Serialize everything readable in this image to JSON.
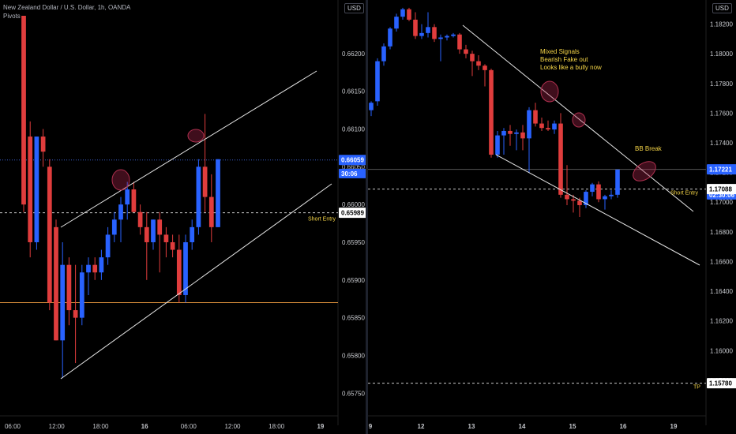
{
  "charts": [
    {
      "id": "left",
      "header": {
        "symbol_line": "New Zealand Dollar / U.S. Dollar, 1h, OANDA",
        "indicator": "Pivots"
      },
      "currency": "USD",
      "colors": {
        "up": "#2962ff",
        "down": "#e03d3d",
        "bg": "#000000",
        "axis_text": "#c8cacf"
      },
      "y_ticks": [
        "0.66200",
        "0.66150",
        "0.66100",
        "0.66050",
        "0.66000",
        "0.65950",
        "0.65900",
        "0.65850",
        "0.65800",
        "0.65750"
      ],
      "x_ticks": [
        "06:00",
        "12:00",
        "18:00",
        "16",
        "06:00",
        "12:00",
        "18:00",
        "19"
      ],
      "price_tags": [
        {
          "text": "0.66059",
          "value": 0.66059,
          "style": "blue"
        },
        {
          "text": "30:06",
          "value": 0.66041,
          "style": "blue-small"
        },
        {
          "text": "0.65989",
          "value": 0.65989,
          "style": "white"
        }
      ],
      "level_labels": [
        {
          "text": "Short Entry",
          "value": 0.65989,
          "color": "#f5d547"
        }
      ],
      "chart_data": {
        "type": "candlestick",
        "y_range": [
          0.6572,
          0.6625
        ],
        "candles": [
          {
            "o": 0.6625,
            "h": 0.6625,
            "l": 0.6599,
            "c": 0.66
          },
          {
            "o": 0.6609,
            "h": 0.6611,
            "l": 0.6593,
            "c": 0.6595
          },
          {
            "o": 0.6595,
            "h": 0.6609,
            "l": 0.6594,
            "c": 0.6609
          },
          {
            "o": 0.6609,
            "h": 0.661,
            "l": 0.6605,
            "c": 0.6607
          },
          {
            "o": 0.6605,
            "h": 0.6606,
            "l": 0.6586,
            "c": 0.6587
          },
          {
            "o": 0.6597,
            "h": 0.6598,
            "l": 0.6582,
            "c": 0.6582
          },
          {
            "o": 0.6582,
            "h": 0.6595,
            "l": 0.6577,
            "c": 0.6592
          },
          {
            "o": 0.6592,
            "h": 0.6593,
            "l": 0.6584,
            "c": 0.6586
          },
          {
            "o": 0.6586,
            "h": 0.6592,
            "l": 0.6579,
            "c": 0.6585
          },
          {
            "o": 0.6585,
            "h": 0.6592,
            "l": 0.6584,
            "c": 0.6591
          },
          {
            "o": 0.6591,
            "h": 0.6593,
            "l": 0.6588,
            "c": 0.6592
          },
          {
            "o": 0.6592,
            "h": 0.6593,
            "l": 0.659,
            "c": 0.6591
          },
          {
            "o": 0.6591,
            "h": 0.6594,
            "l": 0.659,
            "c": 0.6593
          },
          {
            "o": 0.6593,
            "h": 0.6597,
            "l": 0.6592,
            "c": 0.6596
          },
          {
            "o": 0.6596,
            "h": 0.6599,
            "l": 0.6595,
            "c": 0.6598
          },
          {
            "o": 0.6598,
            "h": 0.6601,
            "l": 0.6595,
            "c": 0.66
          },
          {
            "o": 0.66,
            "h": 0.6603,
            "l": 0.6598,
            "c": 0.6602
          },
          {
            "o": 0.6602,
            "h": 0.6603,
            "l": 0.6599,
            "c": 0.6599
          },
          {
            "o": 0.6599,
            "h": 0.66,
            "l": 0.6596,
            "c": 0.6597
          },
          {
            "o": 0.6597,
            "h": 0.6599,
            "l": 0.659,
            "c": 0.6595
          },
          {
            "o": 0.6595,
            "h": 0.6598,
            "l": 0.6594,
            "c": 0.6598
          },
          {
            "o": 0.6598,
            "h": 0.6599,
            "l": 0.6591,
            "c": 0.6596
          },
          {
            "o": 0.6596,
            "h": 0.6597,
            "l": 0.6593,
            "c": 0.6595
          },
          {
            "o": 0.6595,
            "h": 0.6596,
            "l": 0.6593,
            "c": 0.6594
          },
          {
            "o": 0.6594,
            "h": 0.6596,
            "l": 0.6587,
            "c": 0.6588
          },
          {
            "o": 0.6588,
            "h": 0.6596,
            "l": 0.6587,
            "c": 0.6595
          },
          {
            "o": 0.6595,
            "h": 0.6598,
            "l": 0.6594,
            "c": 0.6597
          },
          {
            "o": 0.6597,
            "h": 0.6606,
            "l": 0.6596,
            "c": 0.6605
          },
          {
            "o": 0.6605,
            "h": 0.6612,
            "l": 0.6599,
            "c": 0.6601
          },
          {
            "o": 0.6601,
            "h": 0.6604,
            "l": 0.6595,
            "c": 0.6597
          },
          {
            "o": 0.6597,
            "h": 0.6606,
            "l": 0.6597,
            "c": 0.6606
          }
        ],
        "trendlines": [
          {
            "x1": 0,
            "y1": 0.6596,
            "x2": 0.6,
            "y2": 0.6609
          }
        ],
        "horizontal_lines": [
          {
            "value": 0.65989,
            "color": "#c9c9c9",
            "style": "dashed",
            "label": "Short Entry"
          },
          {
            "value": 0.66059,
            "color": "#3a5fcd",
            "style": "dotted"
          },
          {
            "value": 0.6587,
            "color": "#d98e3b",
            "style": "solid"
          }
        ]
      }
    },
    {
      "id": "right",
      "header": {
        "symbol_line": "",
        "indicator": ""
      },
      "currency": "USD",
      "colors": {
        "up": "#2962ff",
        "down": "#e03d3d",
        "bg": "#000000",
        "axis_text": "#c8cacf"
      },
      "y_ticks": [
        "1.18200",
        "1.18000",
        "1.17800",
        "1.17600",
        "1.17400",
        "1.17200",
        "1.17000",
        "1.16800",
        "1.16600",
        "1.16400",
        "1.16200",
        "1.16000",
        "1.15800"
      ],
      "x_ticks": [
        "9",
        "12",
        "13",
        "14",
        "15",
        "16",
        "19"
      ],
      "price_tags": [
        {
          "text": "1.17221",
          "value": 1.17221,
          "style": "blue"
        },
        {
          "text": "02:30:06",
          "value": 1.1705,
          "style": "blue-small"
        },
        {
          "text": "1.17088",
          "value": 1.17088,
          "style": "white"
        },
        {
          "text": "1.15780",
          "value": 1.1578,
          "style": "white"
        }
      ],
      "level_labels": [
        {
          "text": "Short Entry",
          "value": 1.17088,
          "color": "#f5d547"
        },
        {
          "text": "TP",
          "value": 1.1578,
          "color": "#f5d547"
        }
      ],
      "annotations": [
        {
          "text": "Mixed Signals",
          "color": "#f5d547"
        },
        {
          "text": "Bearish Fake out",
          "color": "#f5d547"
        },
        {
          "text": "Looks like a bully now",
          "color": "#f5d547"
        },
        {
          "text": "BB Break",
          "color": "#f5d547"
        }
      ],
      "chart_data": {
        "type": "candlestick",
        "y_range": [
          1.1556,
          1.1832
        ],
        "candles": [
          {
            "o": 1.1762,
            "h": 1.1768,
            "l": 1.1758,
            "c": 1.1767
          },
          {
            "o": 1.1768,
            "h": 1.1797,
            "l": 1.1765,
            "c": 1.1795
          },
          {
            "o": 1.1795,
            "h": 1.1807,
            "l": 1.1792,
            "c": 1.1805
          },
          {
            "o": 1.1805,
            "h": 1.1818,
            "l": 1.1803,
            "c": 1.1817
          },
          {
            "o": 1.1817,
            "h": 1.1827,
            "l": 1.1815,
            "c": 1.1825
          },
          {
            "o": 1.1825,
            "h": 1.1831,
            "l": 1.1823,
            "c": 1.183
          },
          {
            "o": 1.183,
            "h": 1.1831,
            "l": 1.1822,
            "c": 1.1823
          },
          {
            "o": 1.1823,
            "h": 1.1828,
            "l": 1.181,
            "c": 1.1812
          },
          {
            "o": 1.1812,
            "h": 1.182,
            "l": 1.181,
            "c": 1.1814
          },
          {
            "o": 1.1814,
            "h": 1.1828,
            "l": 1.1811,
            "c": 1.1818
          },
          {
            "o": 1.1818,
            "h": 1.182,
            "l": 1.1808,
            "c": 1.181
          },
          {
            "o": 1.181,
            "h": 1.1813,
            "l": 1.1795,
            "c": 1.1811
          },
          {
            "o": 1.1811,
            "h": 1.1813,
            "l": 1.1809,
            "c": 1.1812
          },
          {
            "o": 1.1812,
            "h": 1.1814,
            "l": 1.1811,
            "c": 1.1813
          },
          {
            "o": 1.1813,
            "h": 1.1814,
            "l": 1.18,
            "c": 1.1803
          },
          {
            "o": 1.1803,
            "h": 1.1806,
            "l": 1.1797,
            "c": 1.18
          },
          {
            "o": 1.18,
            "h": 1.1802,
            "l": 1.1785,
            "c": 1.1795
          },
          {
            "o": 1.1795,
            "h": 1.1799,
            "l": 1.1789,
            "c": 1.1792
          },
          {
            "o": 1.1792,
            "h": 1.1793,
            "l": 1.1778,
            "c": 1.1789
          },
          {
            "o": 1.1789,
            "h": 1.179,
            "l": 1.173,
            "c": 1.1732
          },
          {
            "o": 1.1732,
            "h": 1.1748,
            "l": 1.173,
            "c": 1.1745
          },
          {
            "o": 1.1745,
            "h": 1.175,
            "l": 1.1732,
            "c": 1.1748
          },
          {
            "o": 1.1748,
            "h": 1.1752,
            "l": 1.1738,
            "c": 1.1746
          },
          {
            "o": 1.1746,
            "h": 1.1749,
            "l": 1.1735,
            "c": 1.1747
          },
          {
            "o": 1.1747,
            "h": 1.1752,
            "l": 1.1735,
            "c": 1.1743
          },
          {
            "o": 1.1743,
            "h": 1.1764,
            "l": 1.172,
            "c": 1.1762
          },
          {
            "o": 1.1762,
            "h": 1.1767,
            "l": 1.1751,
            "c": 1.1753
          },
          {
            "o": 1.1753,
            "h": 1.1757,
            "l": 1.1748,
            "c": 1.175
          },
          {
            "o": 1.175,
            "h": 1.1755,
            "l": 1.1748,
            "c": 1.1749
          },
          {
            "o": 1.1749,
            "h": 1.1755,
            "l": 1.1746,
            "c": 1.1753
          },
          {
            "o": 1.1753,
            "h": 1.176,
            "l": 1.1703,
            "c": 1.1705
          },
          {
            "o": 1.1705,
            "h": 1.1725,
            "l": 1.1698,
            "c": 1.1702
          },
          {
            "o": 1.1702,
            "h": 1.1705,
            "l": 1.1693,
            "c": 1.1701
          },
          {
            "o": 1.1701,
            "h": 1.1703,
            "l": 1.169,
            "c": 1.1698
          },
          {
            "o": 1.1698,
            "h": 1.1708,
            "l": 1.1696,
            "c": 1.1707
          },
          {
            "o": 1.1707,
            "h": 1.1713,
            "l": 1.1704,
            "c": 1.1712
          },
          {
            "o": 1.1712,
            "h": 1.1714,
            "l": 1.17,
            "c": 1.1702
          },
          {
            "o": 1.1702,
            "h": 1.1705,
            "l": 1.1695,
            "c": 1.1704
          },
          {
            "o": 1.1704,
            "h": 1.1708,
            "l": 1.1702,
            "c": 1.1705
          },
          {
            "o": 1.1705,
            "h": 1.1722,
            "l": 1.1703,
            "c": 1.1722
          }
        ],
        "horizontal_lines": [
          {
            "value": 1.17088,
            "color": "#c9c9c9",
            "style": "dashed",
            "label": "Short Entry"
          },
          {
            "value": 1.17221,
            "color": "#555555",
            "style": "solid"
          },
          {
            "value": 1.1578,
            "color": "#c9c9c9",
            "style": "dashed",
            "label": "TP"
          }
        ]
      }
    }
  ]
}
